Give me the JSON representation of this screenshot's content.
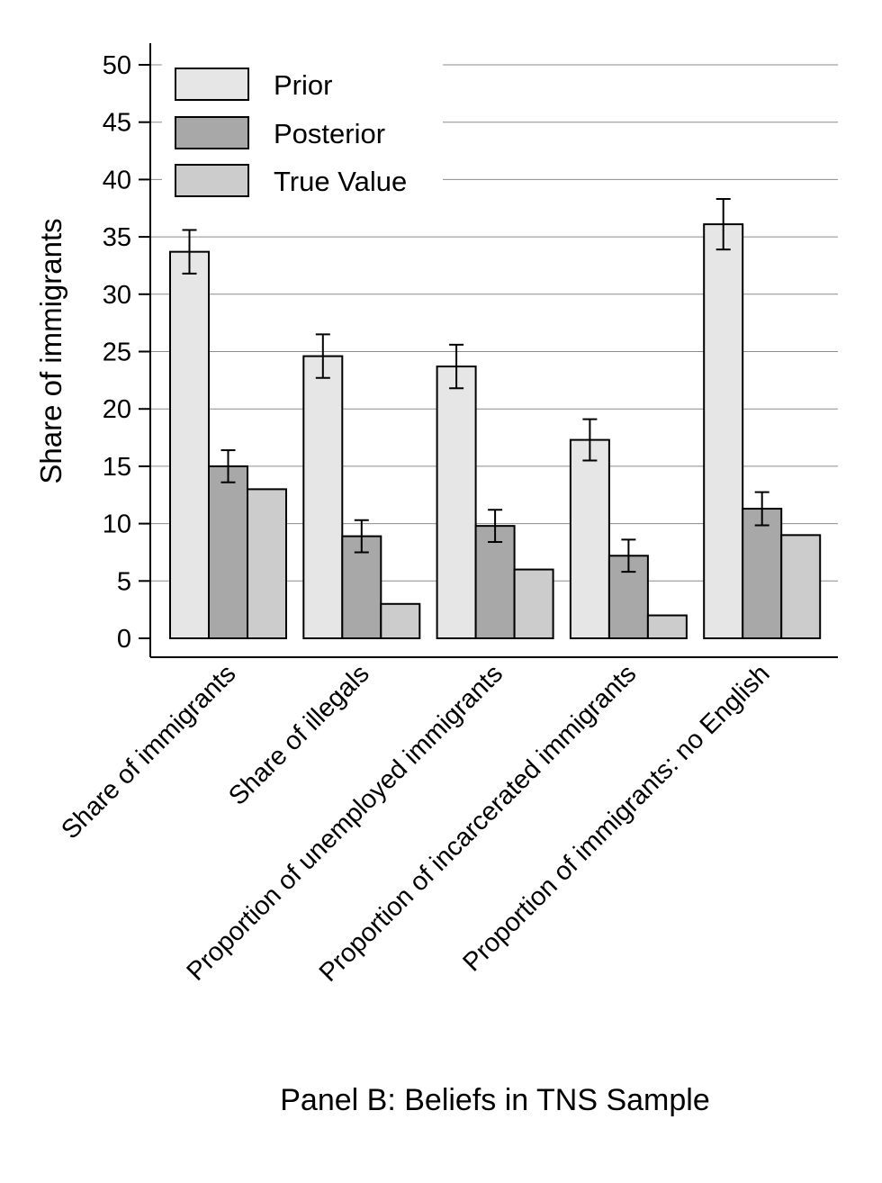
{
  "chart_data": {
    "type": "bar",
    "title": "Panel B: Beliefs in TNS Sample",
    "xlabel": "",
    "ylabel": "Share of immigrants",
    "ylim": [
      0,
      50
    ],
    "yticks": [
      0,
      5,
      10,
      15,
      20,
      25,
      30,
      35,
      40,
      45,
      50
    ],
    "grid": true,
    "legend_position": "top-left",
    "categories": [
      "Share of immigrants",
      "Share of illegals",
      "Proportion of unemployed immigrants",
      "Proportion of incarcerated immigrants",
      "Proportion of immigrants: no English"
    ],
    "series": [
      {
        "name": "Prior",
        "color": "#e6e6e6",
        "values": [
          33.7,
          24.6,
          23.7,
          17.3,
          36.1
        ],
        "error": [
          1.9,
          1.9,
          1.9,
          1.8,
          2.2
        ]
      },
      {
        "name": "Posterior",
        "color": "#a8a8a8",
        "values": [
          15.0,
          8.9,
          9.8,
          7.2,
          11.3
        ],
        "error": [
          1.4,
          1.4,
          1.4,
          1.4,
          1.45
        ]
      },
      {
        "name": "True Value",
        "color": "#cccccc",
        "values": [
          13,
          3,
          6,
          2,
          9
        ],
        "error": null
      }
    ]
  }
}
